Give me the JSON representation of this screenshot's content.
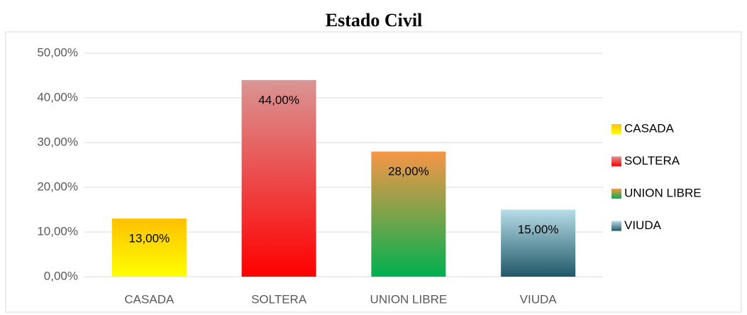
{
  "chart_data": {
    "type": "bar",
    "title": "Estado Civil",
    "categories": [
      "CASADA",
      "SOLTERA",
      "UNION LIBRE",
      "VIUDA"
    ],
    "values": [
      13,
      44,
      28,
      15
    ],
    "value_labels": [
      "13,00%",
      "44,00%",
      "28,00%",
      "15,00%"
    ],
    "colors": [
      {
        "top": "#ffc000",
        "bottom": "#ffff00"
      },
      {
        "top": "#d99594",
        "bottom": "#ff0000"
      },
      {
        "top": "#f79646",
        "bottom": "#00b050"
      },
      {
        "top": "#b7dde8",
        "bottom": "#215868"
      }
    ],
    "ylim": [
      0,
      50
    ],
    "yticks": [
      {
        "value": 0,
        "label": "0,00%"
      },
      {
        "value": 10,
        "label": "10,00%"
      },
      {
        "value": 20,
        "label": "20,00%"
      },
      {
        "value": 30,
        "label": "30,00%"
      },
      {
        "value": 40,
        "label": "40,00%"
      },
      {
        "value": 50,
        "label": "50,00%"
      }
    ],
    "grid": true,
    "legend": "right"
  }
}
